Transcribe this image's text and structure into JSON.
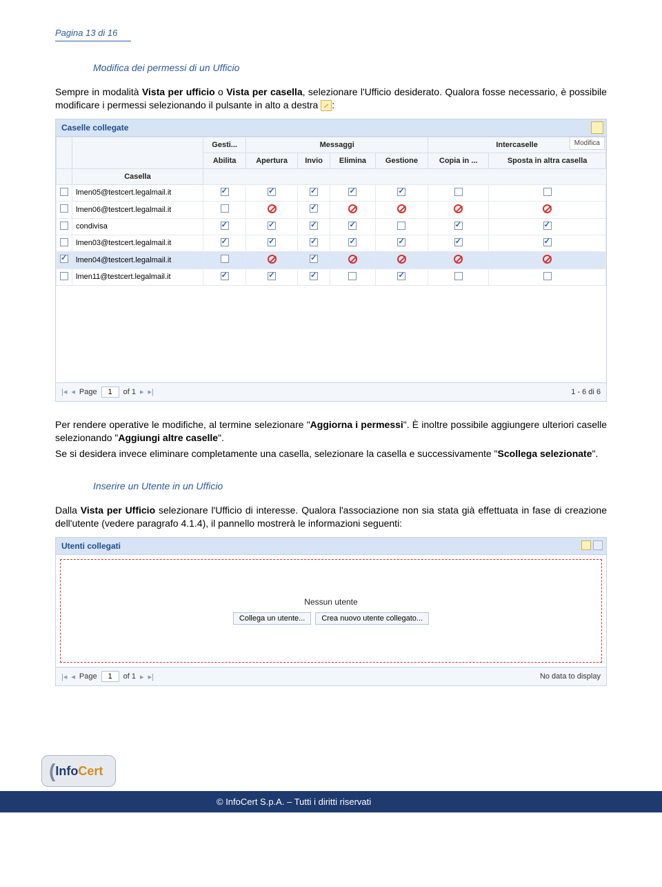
{
  "page_label": "Pagina 13 di 16",
  "section1_title": "Modifica dei permessi di un Ufficio",
  "para1_a": "Sempre in modalità ",
  "para1_b": "Vista per ufficio",
  "para1_c": " o ",
  "para1_d": "Vista per casella",
  "para1_e": ", selezionare l'Ufficio desiderato. Qualora fosse necessario, è possibile modificare i permessi selezionando il pulsante in alto a destra ",
  "para1_f": ":",
  "panel1_title": "Caselle collegate",
  "modifica_label": "Modifica",
  "headers": {
    "casella": "Casella",
    "gesti": "Gesti...",
    "messaggi": "Messaggi",
    "intercaselle": "Intercaselle",
    "abilita": "Abilita",
    "apertura": "Apertura",
    "invio": "Invio",
    "elimina": "Elimina",
    "gestione": "Gestione",
    "copia": "Copia in ...",
    "sposta": "Sposta in altra casella"
  },
  "rows": [
    {
      "sel": false,
      "casella": "lmen05@testcert.legalmail.it",
      "abilita": "check",
      "apertura": "check",
      "invio": "check",
      "elimina": "check",
      "gestione": "check",
      "copia": "empty",
      "sposta": "empty"
    },
    {
      "sel": false,
      "casella": "lmen06@testcert.legalmail.it",
      "abilita": "empty",
      "apertura": "deny",
      "invio": "check",
      "elimina": "deny",
      "gestione": "deny",
      "copia": "deny",
      "sposta": "deny"
    },
    {
      "sel": false,
      "casella": "condivisa",
      "abilita": "check",
      "apertura": "check",
      "invio": "check",
      "elimina": "check",
      "gestione": "empty",
      "copia": "check",
      "sposta": "check"
    },
    {
      "sel": false,
      "casella": "lmen03@testcert.legalmail.it",
      "abilita": "check",
      "apertura": "check",
      "invio": "check",
      "elimina": "check",
      "gestione": "check",
      "copia": "check",
      "sposta": "check"
    },
    {
      "sel": true,
      "casella": "lmen04@testcert.legalmail.it",
      "abilita": "empty",
      "apertura": "deny",
      "invio": "check",
      "elimina": "deny",
      "gestione": "deny",
      "copia": "deny",
      "sposta": "deny"
    },
    {
      "sel": false,
      "casella": "lmen11@testcert.legalmail.it",
      "abilita": "check",
      "apertura": "check",
      "invio": "check",
      "elimina": "empty",
      "gestione": "check",
      "copia": "empty",
      "sposta": "empty"
    }
  ],
  "pager1": {
    "page_label": "Page",
    "page_val": "1",
    "of_label": "of 1",
    "count": "1 - 6 di 6"
  },
  "para2_a": "Per rendere operative le modifiche, al termine selezionare \"",
  "para2_b": "Aggiorna i permessi",
  "para2_c": "\". È inoltre possibile aggiungere ulteriori caselle selezionando \"",
  "para2_d": "Aggiungi altre caselle",
  "para2_e": "\".",
  "para3_a": "Se si desidera invece eliminare completamente una casella, selezionare la casella e successivamente \"",
  "para3_b": "Scollega selezionate",
  "para3_c": "\".",
  "section2_title": "Inserire un Utente in un Ufficio",
  "para4_a": "Dalla ",
  "para4_b": "Vista per Ufficio",
  "para4_c": " selezionare l'Ufficio di interesse. Qualora l'associazione non sia stata già effettuata in fase di creazione dell'utente (vedere paragrafo 4.1.4), il pannello mostrerà le informazioni seguenti:",
  "panel2_title": "Utenti collegati",
  "nessun_utente": "Nessun utente",
  "btn_collega": "Collega un utente...",
  "btn_crea": "Crea nuovo utente collegato...",
  "pager2": {
    "page_label": "Page",
    "page_val": "1",
    "of_label": "of 1",
    "nodata": "No data to display"
  },
  "footer_copy": "©  InfoCert S.p.A. – Tutti i diritti riservati",
  "logo_info": "Info",
  "logo_cert": "Cert",
  "colors": {
    "header_bg": "#d6e4f5",
    "header_text": "#1e4d8c",
    "border": "#c9d3e2",
    "subhead_bg": "#f3f6fb",
    "row_sel": "#dbe7f6",
    "deny": "#d73030",
    "link": "#2a5a9e",
    "footer_bg": "#1e3a6e"
  }
}
